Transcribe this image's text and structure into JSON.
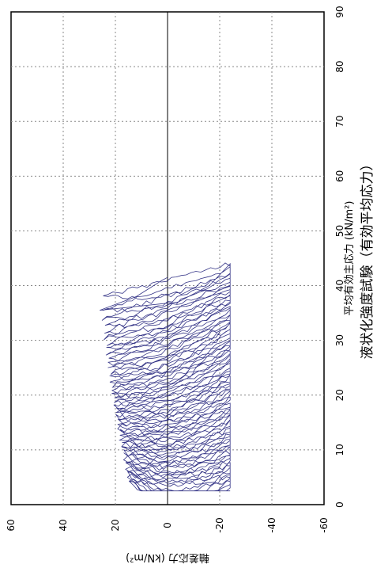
{
  "chart_data": {
    "type": "line",
    "title": "液状化強度試験（有効平均応力）",
    "xlabel": "平均有効主応力 (kN/m²)",
    "ylabel": "軸差応力 (kN/m²)",
    "xlim": [
      0,
      90
    ],
    "ylim": [
      -60,
      60
    ],
    "xticks": [
      "0",
      "10",
      "20",
      "30",
      "40",
      "50",
      "60",
      "70",
      "80",
      "90"
    ],
    "yticks": [
      "60",
      "40",
      "20",
      "0",
      "-20",
      "-40",
      "-60"
    ],
    "orientation": "rotated-90",
    "grid": true,
    "series": [
      {
        "color": "#1f1f7a",
        "description_loops": "cyclic stress path converging toward origin",
        "x": [
          41.5,
          41.0,
          38.0,
          35.5,
          37.0,
          40.0,
          44.0
        ],
        "y": [
          0.0,
          2.0,
          12.0,
          26.0,
          -4.0,
          -16.0,
          -24.0
        ]
      }
    ],
    "colors": {
      "line": "#1f1f7a",
      "grid": "#888888",
      "frame": "#000000"
    }
  }
}
